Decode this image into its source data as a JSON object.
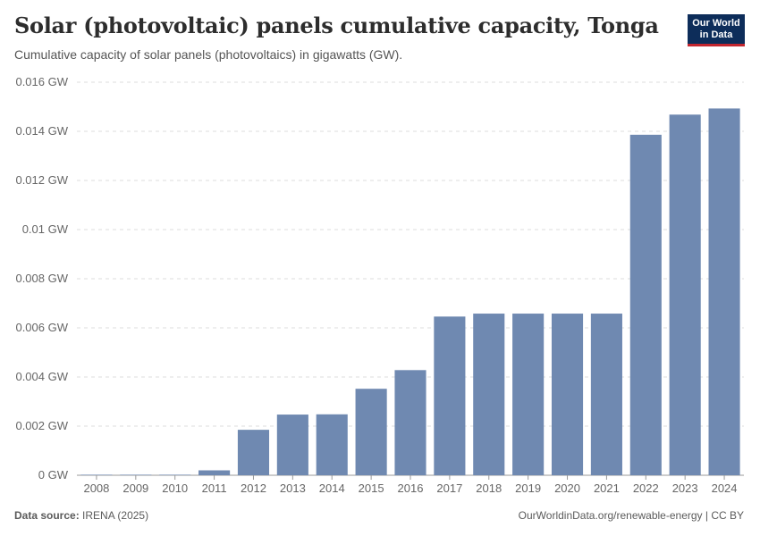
{
  "header": {
    "title": "Solar (photovoltaic) panels cumulative capacity, Tonga",
    "subtitle": "Cumulative capacity of solar panels (photovoltaics) in gigawatts (GW).",
    "logo_line1": "Our World",
    "logo_line2": "in Data"
  },
  "footer": {
    "source_label": "Data source:",
    "source_value": "IRENA (2025)",
    "right_text": "OurWorldinData.org/renewable-energy | CC BY"
  },
  "colors": {
    "bar": "#6f89b1",
    "grid": "#dddddd",
    "text": "#666666",
    "logo_bg": "#0d2d5a",
    "logo_accent": "#c3262f"
  },
  "chart_data": {
    "type": "bar",
    "title": "Solar (photovoltaic) panels cumulative capacity, Tonga",
    "xlabel": "",
    "ylabel": "GW",
    "ylim": [
      0,
      0.016
    ],
    "y_ticks": [
      0,
      0.002,
      0.004,
      0.006,
      0.008,
      0.01,
      0.012,
      0.014,
      0.016
    ],
    "y_tick_labels": [
      "0 GW",
      "0.002 GW",
      "0.004 GW",
      "0.006 GW",
      "0.008 GW",
      "0.01 GW",
      "0.012 GW",
      "0.014 GW",
      "0.016 GW"
    ],
    "categories": [
      "2008",
      "2009",
      "2010",
      "2011",
      "2012",
      "2013",
      "2014",
      "2015",
      "2016",
      "2017",
      "2018",
      "2019",
      "2020",
      "2021",
      "2022",
      "2023",
      "2024"
    ],
    "values": [
      1e-05,
      1e-05,
      1e-05,
      0.0002,
      0.00185,
      0.00247,
      0.00248,
      0.00352,
      0.00428,
      0.00646,
      0.00658,
      0.00658,
      0.00658,
      0.00658,
      0.01386,
      0.01468,
      0.01493
    ]
  }
}
